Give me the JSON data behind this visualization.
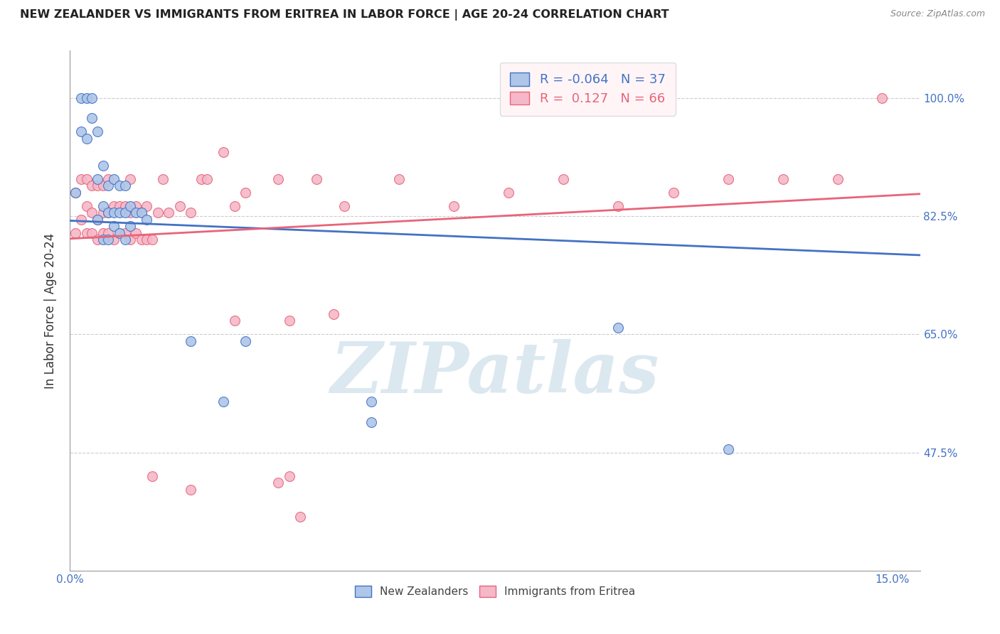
{
  "title": "NEW ZEALANDER VS IMMIGRANTS FROM ERITREA IN LABOR FORCE | AGE 20-24 CORRELATION CHART",
  "source": "Source: ZipAtlas.com",
  "ylabel": "In Labor Force | Age 20-24",
  "xlim": [
    0.0,
    0.155
  ],
  "ylim": [
    0.3,
    1.07
  ],
  "blue_R": -0.064,
  "blue_N": 37,
  "pink_R": 0.127,
  "pink_N": 66,
  "blue_color": "#aec6e8",
  "pink_color": "#f4b8c8",
  "blue_line_color": "#4472c4",
  "pink_line_color": "#e8647a",
  "watermark_color": "#dce8f0",
  "background_color": "#ffffff",
  "blue_scatter_x": [
    0.001,
    0.002,
    0.002,
    0.003,
    0.003,
    0.004,
    0.004,
    0.005,
    0.005,
    0.005,
    0.006,
    0.006,
    0.006,
    0.007,
    0.007,
    0.007,
    0.008,
    0.008,
    0.008,
    0.009,
    0.009,
    0.009,
    0.01,
    0.01,
    0.01,
    0.011,
    0.011,
    0.012,
    0.013,
    0.014,
    0.022,
    0.032,
    0.1,
    0.028,
    0.055,
    0.055,
    0.12
  ],
  "blue_scatter_y": [
    0.86,
    0.95,
    1.0,
    0.94,
    1.0,
    0.97,
    1.0,
    0.82,
    0.88,
    0.95,
    0.79,
    0.84,
    0.9,
    0.79,
    0.83,
    0.87,
    0.81,
    0.83,
    0.88,
    0.8,
    0.83,
    0.87,
    0.79,
    0.83,
    0.87,
    0.81,
    0.84,
    0.83,
    0.83,
    0.82,
    0.64,
    0.64,
    0.66,
    0.55,
    0.55,
    0.52,
    0.48
  ],
  "pink_scatter_x": [
    0.001,
    0.001,
    0.002,
    0.002,
    0.003,
    0.003,
    0.003,
    0.004,
    0.004,
    0.004,
    0.005,
    0.005,
    0.005,
    0.006,
    0.006,
    0.006,
    0.007,
    0.007,
    0.007,
    0.008,
    0.008,
    0.009,
    0.009,
    0.01,
    0.01,
    0.011,
    0.011,
    0.011,
    0.012,
    0.012,
    0.013,
    0.013,
    0.014,
    0.014,
    0.015,
    0.016,
    0.017,
    0.018,
    0.02,
    0.022,
    0.024,
    0.025,
    0.028,
    0.03,
    0.032,
    0.038,
    0.04,
    0.045,
    0.048,
    0.05,
    0.06,
    0.07,
    0.08,
    0.09,
    0.1,
    0.11,
    0.12,
    0.13,
    0.14,
    0.148,
    0.015,
    0.022,
    0.03,
    0.04,
    0.038,
    0.042
  ],
  "pink_scatter_y": [
    0.8,
    0.86,
    0.82,
    0.88,
    0.8,
    0.84,
    0.88,
    0.8,
    0.83,
    0.87,
    0.79,
    0.82,
    0.87,
    0.8,
    0.83,
    0.87,
    0.8,
    0.83,
    0.88,
    0.79,
    0.84,
    0.8,
    0.84,
    0.8,
    0.84,
    0.79,
    0.83,
    0.88,
    0.8,
    0.84,
    0.79,
    0.83,
    0.79,
    0.84,
    0.79,
    0.83,
    0.88,
    0.83,
    0.84,
    0.83,
    0.88,
    0.88,
    0.92,
    0.84,
    0.86,
    0.88,
    0.67,
    0.88,
    0.68,
    0.84,
    0.88,
    0.84,
    0.86,
    0.88,
    0.84,
    0.86,
    0.88,
    0.88,
    0.88,
    1.0,
    0.44,
    0.42,
    0.67,
    0.44,
    0.43,
    0.38
  ]
}
